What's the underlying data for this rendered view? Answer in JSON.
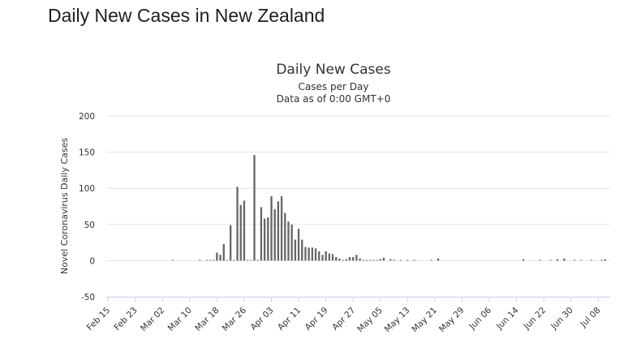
{
  "page": {
    "heading": "Daily New Cases in New Zealand"
  },
  "chart_data": {
    "type": "bar",
    "title": "Daily New Cases",
    "subtitle": [
      "Cases per Day",
      "Data as of 0:00 GMT+0"
    ],
    "xlabel": "",
    "ylabel": "Novel Coronavirus Daily Cases",
    "ylim": [
      -50,
      200
    ],
    "yticks": [
      200,
      150,
      100,
      50,
      0,
      -50
    ],
    "xlim": [
      "Feb 15",
      "Jul 11"
    ],
    "x_tick_labels": [
      "Feb 15",
      "Feb 23",
      "Mar 02",
      "Mar 10",
      "Mar 18",
      "Mar 26",
      "Apr 03",
      "Apr 11",
      "Apr 19",
      "Apr 27",
      "May 05",
      "May 13",
      "May 21",
      "May 29",
      "Jun 06",
      "Jun 14",
      "Jun 22",
      "Jun 30",
      "Jul 08"
    ],
    "grid": true,
    "legend": "none",
    "bar_color": "#666666",
    "series": [
      {
        "x": [
          "Mar 05",
          "Mar 13",
          "Mar 15",
          "Mar 16",
          "Mar 17",
          "Mar 18",
          "Mar 19",
          "Mar 20",
          "Mar 21",
          "Mar 22",
          "Mar 23",
          "Mar 24",
          "Mar 25",
          "Mar 26",
          "Mar 27",
          "Mar 28",
          "Mar 29",
          "Mar 30",
          "Mar 31",
          "Apr 01",
          "Apr 02",
          "Apr 03",
          "Apr 04",
          "Apr 05",
          "Apr 06",
          "Apr 07",
          "Apr 08",
          "Apr 09",
          "Apr 10",
          "Apr 11",
          "Apr 12",
          "Apr 13",
          "Apr 14",
          "Apr 15",
          "Apr 16",
          "Apr 17",
          "Apr 18",
          "Apr 19",
          "Apr 20",
          "Apr 21",
          "Apr 22",
          "Apr 23",
          "Apr 24",
          "Apr 25",
          "Apr 26",
          "Apr 27",
          "Apr 28",
          "Apr 29",
          "Apr 30",
          "May 01",
          "May 02",
          "May 03",
          "May 04",
          "May 05",
          "May 06",
          "May 08",
          "May 09",
          "May 11",
          "May 13",
          "May 15",
          "May 20",
          "May 22",
          "Jun 16",
          "Jun 21",
          "Jun 24",
          "Jun 26",
          "Jun 28",
          "Jul 01",
          "Jul 03",
          "Jul 06",
          "Jul 09",
          "Jul 10"
        ],
        "values": [
          1,
          1,
          1,
          1,
          1,
          11,
          8,
          23,
          1,
          49,
          1,
          102,
          77,
          83,
          1,
          1,
          146,
          1,
          74,
          58,
          60,
          89,
          71,
          82,
          89,
          66,
          54,
          50,
          29,
          44,
          29,
          19,
          18,
          18,
          17,
          13,
          8,
          13,
          10,
          9,
          5,
          3,
          1,
          2,
          5,
          5,
          8,
          3,
          1,
          1,
          1,
          1,
          1,
          2,
          4,
          2,
          1,
          1,
          1,
          1,
          1,
          3,
          2,
          1,
          1,
          2,
          3,
          1,
          1,
          1,
          1,
          2
        ]
      }
    ]
  }
}
